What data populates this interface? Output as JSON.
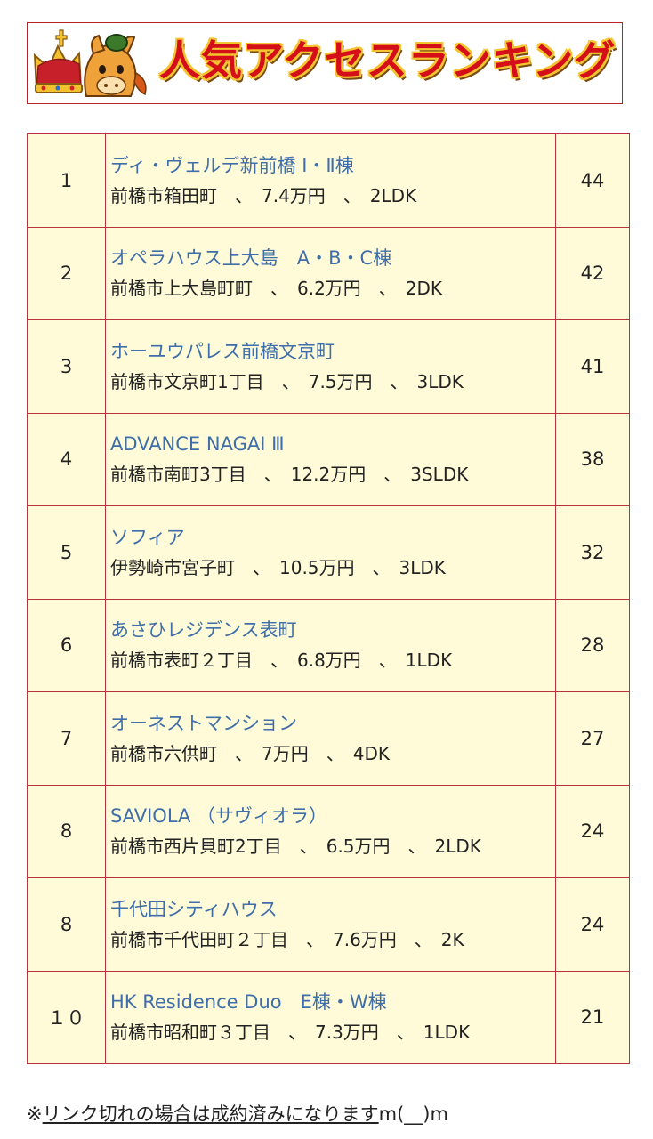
{
  "banner": {
    "title": "人気アクセスランキング",
    "mascot_icon": "crown-mascot-icon",
    "colors": {
      "title": "#d40f1a",
      "outline": "#f4c531",
      "border": "#b5252a"
    }
  },
  "table": {
    "colors": {
      "cell_bg": "#fffbd8",
      "border": "#b7323a",
      "link": "#3f6ea8"
    },
    "rows": [
      {
        "rank": "1",
        "name": "ディ・ヴェルデ新前橋 Ⅰ・Ⅱ棟",
        "detail": "前橋市箱田町　、　7.4万円　、　2LDK",
        "count": "44"
      },
      {
        "rank": "2",
        "name": "オペラハウス上大島　A・B・C棟",
        "detail": "前橋市上大島町町　、　6.2万円　、　2DK",
        "count": "42"
      },
      {
        "rank": "3",
        "name": "ホーユウパレス前橋文京町",
        "detail": "前橋市文京町1丁目　、　7.5万円　、　3LDK",
        "count": "41"
      },
      {
        "rank": "4",
        "name": "ADVANCE NAGAI Ⅲ",
        "detail": "前橋市南町3丁目　、　12.2万円　、　3SLDK",
        "count": "38"
      },
      {
        "rank": "5",
        "name": "ソフィア",
        "detail": "伊勢崎市宮子町　、　10.5万円　、　3LDK",
        "count": "32"
      },
      {
        "rank": "6",
        "name": "あさひレジデンス表町",
        "detail": "前橋市表町２丁目　、　6.8万円　、　1LDK",
        "count": "28"
      },
      {
        "rank": "7",
        "name": "オーネストマンション",
        "detail": "前橋市六供町　、　7万円　、　4DK",
        "count": "27"
      },
      {
        "rank": "8",
        "name": "SAVIOLA （サヴィオラ）",
        "detail": "前橋市西片貝町2丁目　、　6.5万円　、　2LDK",
        "count": "24"
      },
      {
        "rank": "8",
        "name": "千代田シティハウス",
        "detail": "前橋市千代田町２丁目　、　7.6万円　、　2K",
        "count": "24"
      },
      {
        "rank": "１０",
        "name": "HK Residence Duo　E棟・W棟",
        "detail": "前橋市昭和町３丁目　、　7.3万円　、　1LDK",
        "count": "21"
      }
    ]
  },
  "footer": {
    "prefix": "※",
    "underlined": "リンク切れの場合は成約済みになります",
    "suffix": "m(__)m"
  }
}
